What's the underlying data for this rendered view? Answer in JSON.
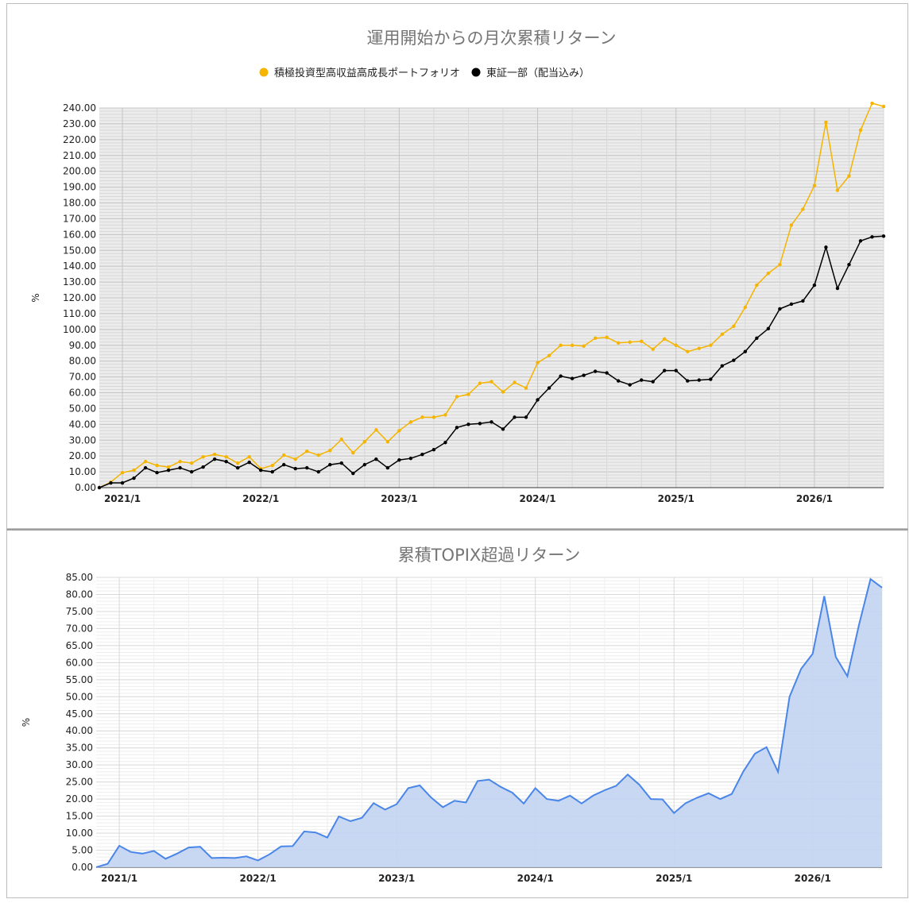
{
  "chart_data": [
    {
      "type": "line",
      "title": "運用開始からの月次累積リターン",
      "ylabel": "%",
      "ylim": [
        0,
        240
      ],
      "ytick_step": 10,
      "xticks": [
        "2021/1",
        "2022/1",
        "2023/1",
        "2024/1",
        "2025/1",
        "2026/1"
      ],
      "x_start": "2020/11",
      "legend_position": "top",
      "grid": true,
      "series": [
        {
          "name": "積極投資型高収益高成長ポートフォリオ",
          "color": "#f4b400",
          "values": [
            0,
            3.5,
            9.5,
            11,
            16.5,
            14,
            13,
            16.5,
            15.5,
            19.5,
            21,
            19.5,
            15.5,
            19.5,
            12,
            14,
            20.5,
            18,
            23,
            20.5,
            23.5,
            30.5,
            22,
            29,
            36.5,
            29,
            36,
            41.5,
            44.5,
            44.5,
            46,
            57.5,
            59,
            66,
            67,
            60.5,
            66.5,
            63,
            79,
            83.5,
            90,
            90,
            89.5,
            94.5,
            95,
            91.5,
            92,
            92.5,
            87.5,
            94,
            90,
            86,
            88,
            90,
            97,
            102,
            114,
            128,
            135.5,
            141,
            166,
            176,
            191,
            231,
            188,
            197,
            226,
            243,
            241
          ]
        },
        {
          "name": "東証一部（配当込み）",
          "color": "#000000",
          "values": [
            0,
            3,
            3,
            6,
            12.5,
            9.5,
            11,
            12.5,
            10,
            13,
            18,
            16.5,
            12.5,
            16,
            11,
            10,
            14.5,
            12,
            12.5,
            10,
            14.5,
            15.5,
            9,
            14.5,
            18,
            12.5,
            17.5,
            18.5,
            21,
            24,
            28.5,
            38,
            40,
            40.5,
            41.5,
            37,
            44.5,
            44.5,
            55.5,
            63,
            70.5,
            69,
            71,
            73.5,
            72.5,
            67.5,
            65,
            68,
            67,
            74,
            74,
            67.5,
            68,
            68.5,
            77,
            80.5,
            86,
            94.5,
            100.5,
            113,
            116,
            118,
            128,
            152,
            126,
            141,
            156,
            158.5,
            159
          ]
        }
      ]
    },
    {
      "type": "area",
      "title": "累積TOPIX超過リターン",
      "ylabel": "%",
      "ylim": [
        0,
        85
      ],
      "ytick_step": 5,
      "xticks": [
        "2021/1",
        "2022/1",
        "2023/1",
        "2024/1",
        "2025/1",
        "2026/1"
      ],
      "x_start": "2020/11",
      "grid": true,
      "color": "#4a86e8",
      "fill": "#c2d4f2",
      "values": [
        0,
        1,
        6.3,
        4.5,
        4,
        4.8,
        2.5,
        4,
        5.8,
        6,
        2.7,
        2.8,
        2.7,
        3.2,
        2,
        3.8,
        6.1,
        6.2,
        10.5,
        10.2,
        8.7,
        14.9,
        13.5,
        14.5,
        18.8,
        16.9,
        18.5,
        23.2,
        24,
        20.4,
        17.6,
        19.5,
        19,
        25.3,
        25.7,
        23.6,
        21.9,
        18.7,
        23.2,
        20,
        19.5,
        21,
        18.7,
        21,
        22.6,
        23.9,
        27.2,
        24.2,
        20,
        19.9,
        15.9,
        18.8,
        20.4,
        21.7,
        20,
        21.5,
        28.1,
        33.3,
        35.2,
        28,
        50,
        58.2,
        62.6,
        79.5,
        61.7,
        56,
        71,
        84.5,
        82
      ]
    }
  ]
}
